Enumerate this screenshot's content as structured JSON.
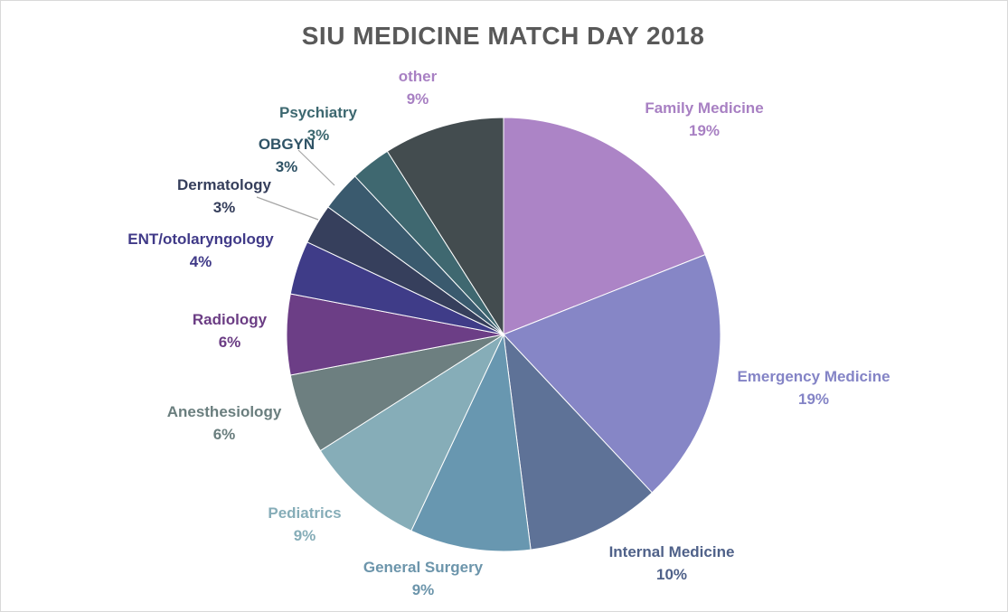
{
  "chart_data": {
    "type": "pie",
    "title": "SIU MEDICINE MATCH DAY 2018",
    "legend": "none",
    "slices": [
      {
        "label": "Family Medicine",
        "pct_label": "19%",
        "value": 19,
        "color": "#ac84c6"
      },
      {
        "label": "Emergency Medicine",
        "pct_label": "19%",
        "value": 19,
        "color": "#8686c6"
      },
      {
        "label": "Internal Medicine",
        "pct_label": "10%",
        "value": 10,
        "color": "#5e7297"
      },
      {
        "label": "General Surgery",
        "pct_label": "9%",
        "value": 9,
        "color": "#6897b0"
      },
      {
        "label": "Pediatrics",
        "pct_label": "9%",
        "value": 9,
        "color": "#86adb8"
      },
      {
        "label": "Anesthesiology",
        "pct_label": "6%",
        "value": 6,
        "color": "#6d7f80"
      },
      {
        "label": "Radiology",
        "pct_label": "6%",
        "value": 6,
        "color": "#6c3e86"
      },
      {
        "label": "ENT/otolaryngology",
        "pct_label": "4%",
        "value": 4,
        "color": "#3f3c88"
      },
      {
        "label": "Dermatology",
        "pct_label": "3%",
        "value": 3,
        "color": "#363f5c"
      },
      {
        "label": "OBGYN",
        "pct_label": "3%",
        "value": 3,
        "color": "#3a5a6e"
      },
      {
        "label": "Psychiatry",
        "pct_label": "3%",
        "value": 3,
        "color": "#3f6870"
      },
      {
        "label": "other",
        "pct_label": "9%",
        "value": 9,
        "color": "#434c4f"
      }
    ],
    "label_colors": [
      "#a880c3",
      "#8484c6",
      "#4f6189",
      "#6c95ab",
      "#86adb8",
      "#6a7e7e",
      "#6b3d84",
      "#403a88",
      "#353e5b",
      "#2f5366",
      "#3d6870",
      "#a880c3"
    ]
  }
}
